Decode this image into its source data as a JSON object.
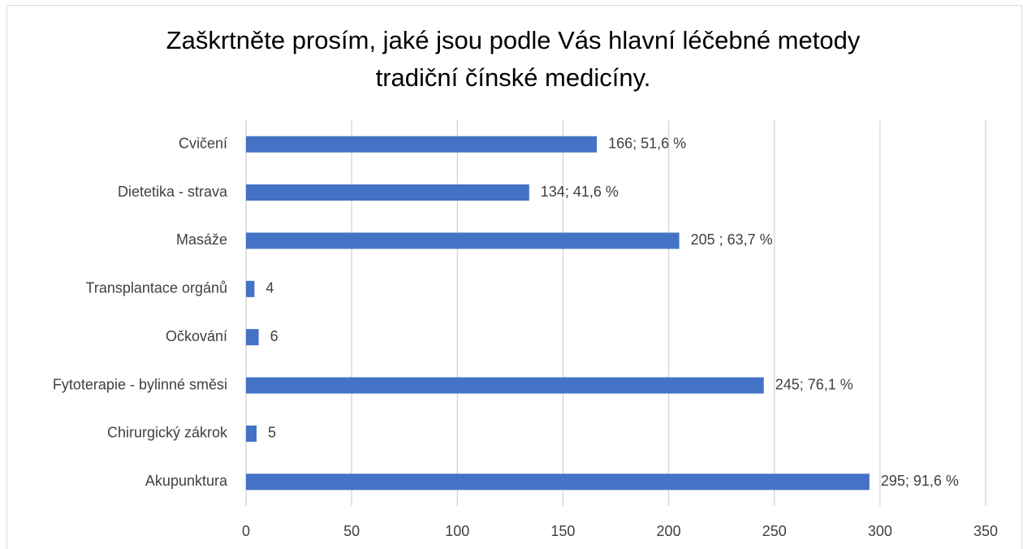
{
  "chart_data": {
    "type": "bar",
    "orientation": "horizontal",
    "title": [
      "Zaškrtněte prosím, jaké jsou podle Vás hlavní léčebné metody",
      "tradiční čínské medicíny."
    ],
    "categories": [
      "Cvičení",
      "Dietetika - strava",
      "Masáže",
      "Transplantace orgánů",
      "Očkování",
      "Fytoterapie - bylinné směsi",
      "Chirurgický zákrok",
      "Akupunktura"
    ],
    "values": [
      166,
      134,
      205,
      4,
      6,
      245,
      5,
      295
    ],
    "value_labels": [
      "166; 51,6 %",
      "134; 41,6 %",
      "205 ; 63,7 %",
      "4",
      "6",
      "245; 76,1 %",
      "5",
      "295; 91,6 %"
    ],
    "color": "#4472c4",
    "xlim": [
      0,
      350
    ],
    "xticks": [
      0,
      50,
      100,
      150,
      200,
      250,
      300,
      350
    ],
    "grid": true
  }
}
